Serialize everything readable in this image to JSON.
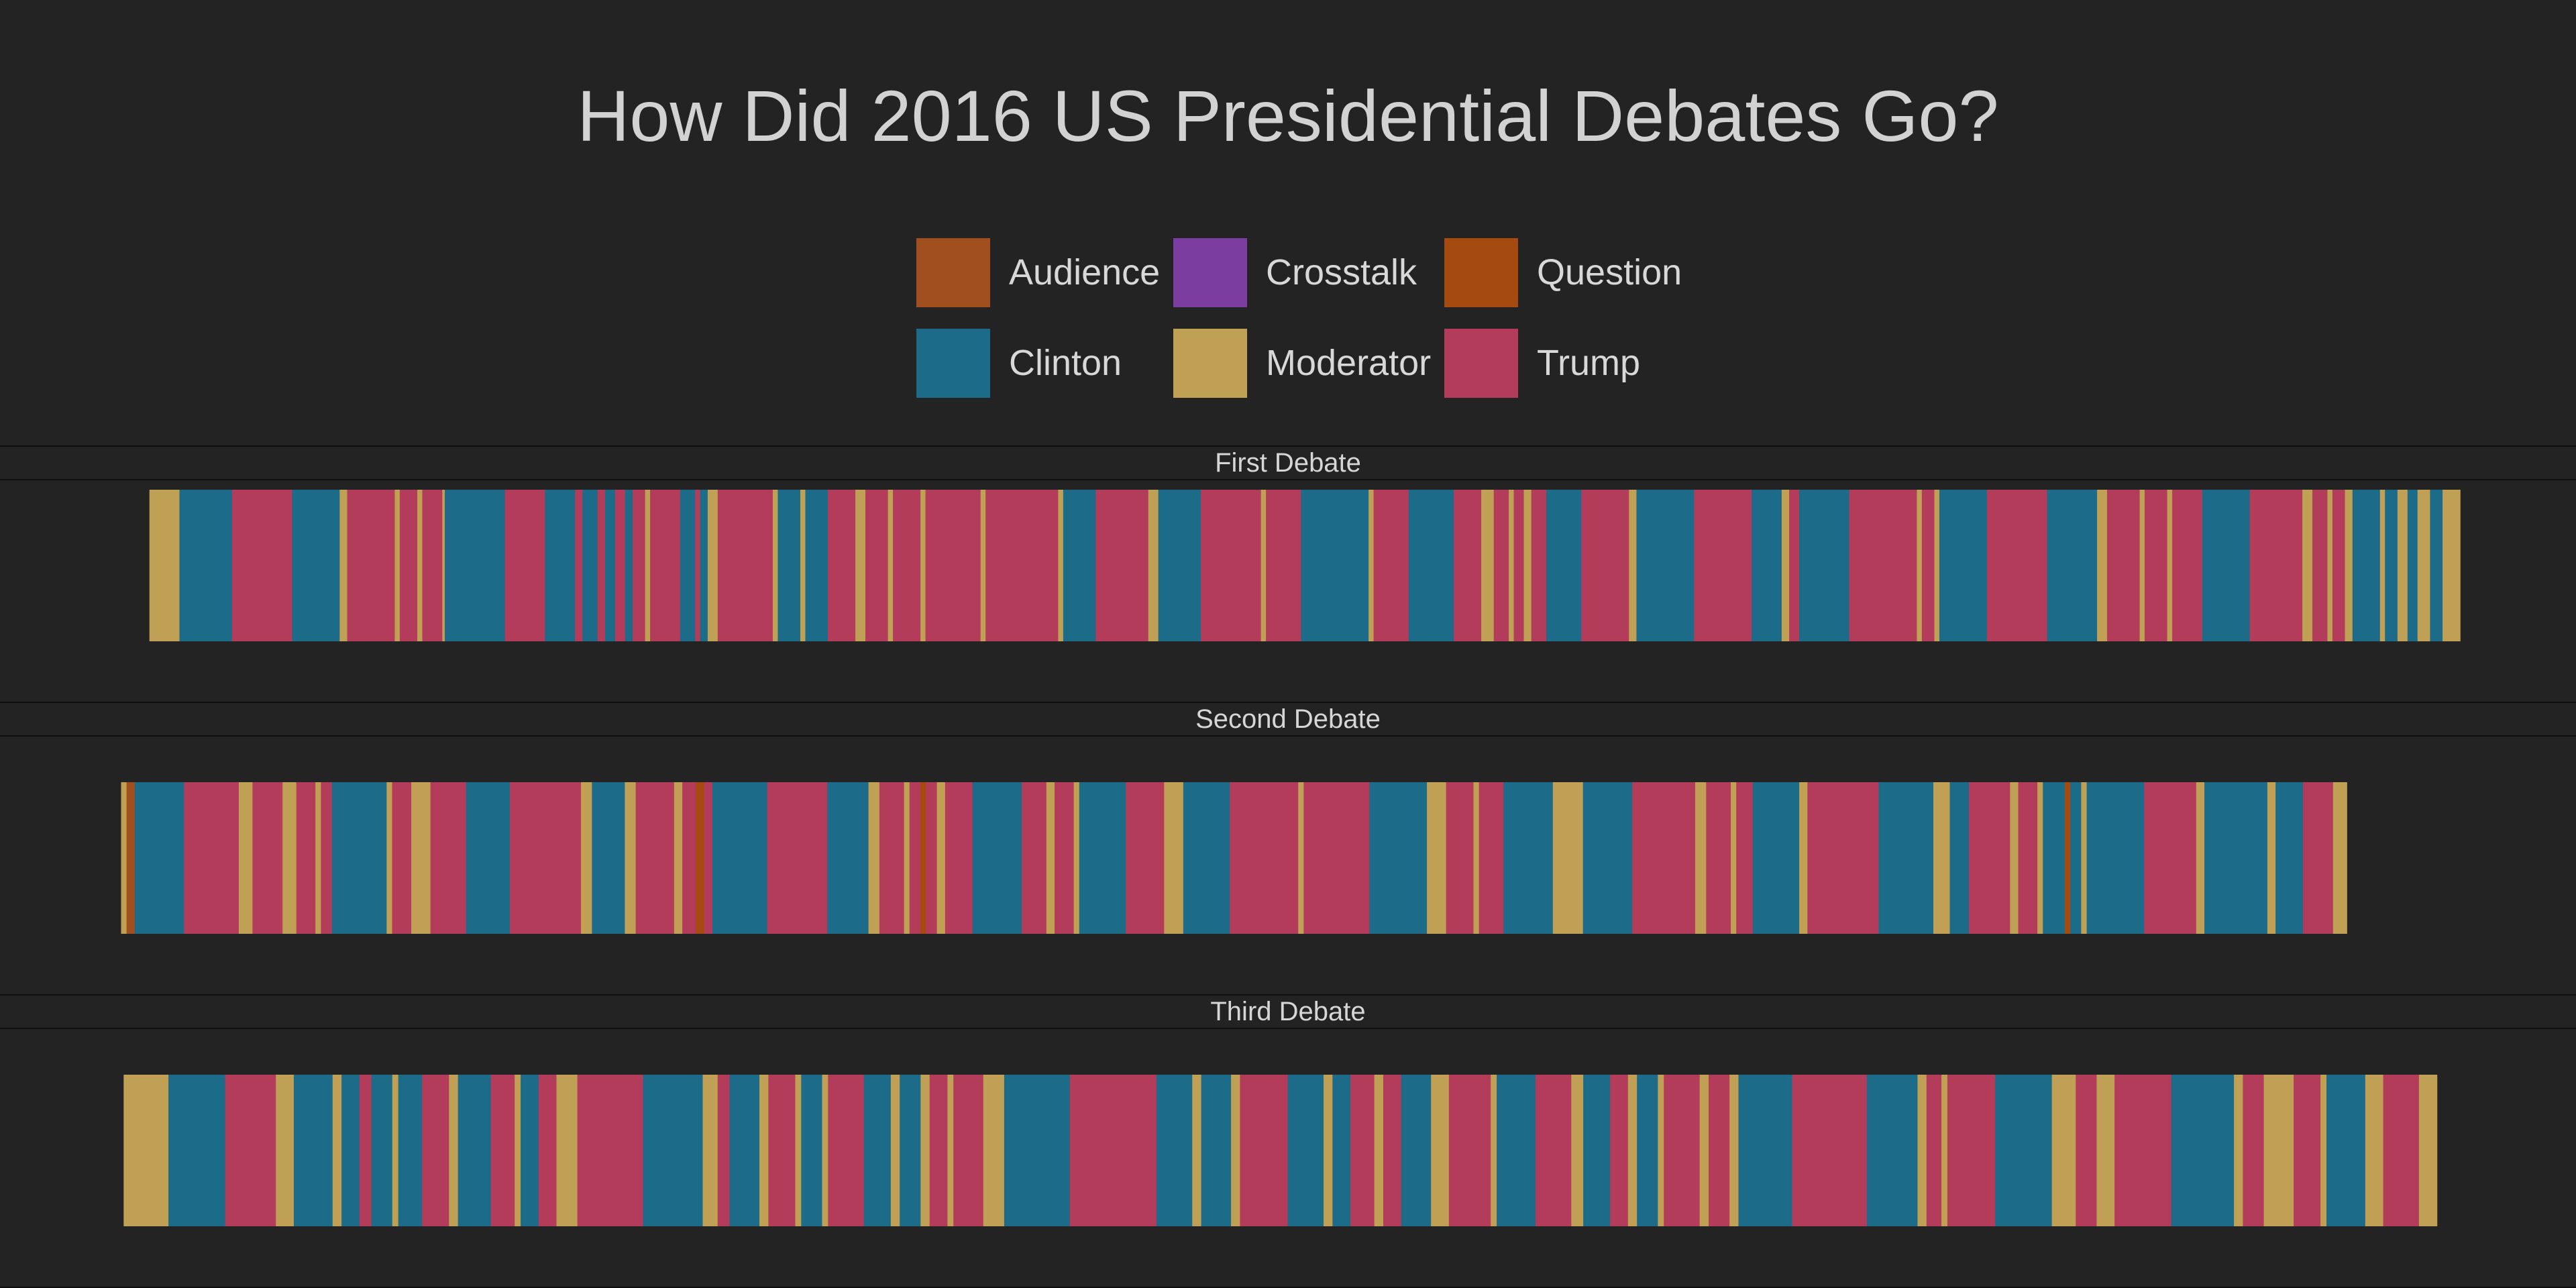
{
  "chart_data": {
    "type": "bar",
    "title": "How Did 2016 US Presidential Debates Go?",
    "legend": {
      "position": "top-center",
      "items": [
        {
          "label": "Audience",
          "color": "#a14f1f"
        },
        {
          "label": "Crosstalk",
          "color": "#7b3ea0"
        },
        {
          "label": "Question",
          "color": "#a54a10"
        },
        {
          "label": "Clinton",
          "color": "#1c6b89"
        },
        {
          "label": "Moderator",
          "color": "#c0a055"
        },
        {
          "label": "Trump",
          "color": "#b33c5a"
        }
      ]
    },
    "panels": [
      {
        "label": "First Debate",
        "extent": [
          0.058,
          0.955
        ],
        "segments": [
          [
            "Moderator",
            0.012
          ],
          [
            "Clinton",
            0.021
          ],
          [
            "Trump",
            0.024
          ],
          [
            "Clinton",
            0.019
          ],
          [
            "Moderator",
            0.003
          ],
          [
            "Trump",
            0.019
          ],
          [
            "Moderator",
            0.002
          ],
          [
            "Trump",
            0.007
          ],
          [
            "Moderator",
            0.002
          ],
          [
            "Trump",
            0.008
          ],
          [
            "Moderator",
            0.001
          ],
          [
            "Clinton",
            0.024
          ],
          [
            "Trump",
            0.016
          ],
          [
            "Clinton",
            0.012
          ],
          [
            "Trump",
            0.003
          ],
          [
            "Clinton",
            0.006
          ],
          [
            "Trump",
            0.003
          ],
          [
            "Clinton",
            0.004
          ],
          [
            "Trump",
            0.004
          ],
          [
            "Clinton",
            0.003
          ],
          [
            "Trump",
            0.005
          ],
          [
            "Moderator",
            0.002
          ],
          [
            "Trump",
            0.012
          ],
          [
            "Clinton",
            0.006
          ],
          [
            "Trump",
            0.002
          ],
          [
            "Clinton",
            0.003
          ],
          [
            "Moderator",
            0.004
          ],
          [
            "Trump",
            0.022
          ],
          [
            "Moderator",
            0.002
          ],
          [
            "Clinton",
            0.009
          ],
          [
            "Moderator",
            0.002
          ],
          [
            "Clinton",
            0.009
          ],
          [
            "Trump",
            0.011
          ],
          [
            "Moderator",
            0.004
          ],
          [
            "Trump",
            0.009
          ],
          [
            "Moderator",
            0.002
          ],
          [
            "Trump",
            0.011
          ],
          [
            "Moderator",
            0.002
          ],
          [
            "Trump",
            0.022
          ],
          [
            "Moderator",
            0.002
          ],
          [
            "Trump",
            0.029
          ],
          [
            "Moderator",
            0.002
          ],
          [
            "Clinton",
            0.013
          ],
          [
            "Trump",
            0.021
          ],
          [
            "Moderator",
            0.004
          ],
          [
            "Clinton",
            0.017
          ],
          [
            "Trump",
            0.024
          ],
          [
            "Moderator",
            0.002
          ],
          [
            "Trump",
            0.014
          ],
          [
            "Clinton",
            0.027
          ],
          [
            "Moderator",
            0.002
          ],
          [
            "Trump",
            0.014
          ],
          [
            "Clinton",
            0.018
          ],
          [
            "Trump",
            0.011
          ],
          [
            "Moderator",
            0.005
          ],
          [
            "Trump",
            0.006
          ],
          [
            "Moderator",
            0.002
          ],
          [
            "Trump",
            0.004
          ],
          [
            "Moderator",
            0.003
          ],
          [
            "Trump",
            0.006
          ],
          [
            "Clinton",
            0.014
          ],
          [
            "Trump",
            0.019
          ],
          [
            "Moderator",
            0.003
          ],
          [
            "Clinton",
            0.023
          ],
          [
            "Trump",
            0.023
          ],
          [
            "Clinton",
            0.012
          ],
          [
            "Moderator",
            0.003
          ],
          [
            "Trump",
            0.004
          ],
          [
            "Clinton",
            0.02
          ],
          [
            "Trump",
            0.027
          ],
          [
            "Moderator",
            0.002
          ],
          [
            "Trump",
            0.005
          ],
          [
            "Moderator",
            0.002
          ],
          [
            "Clinton",
            0.019
          ],
          [
            "Trump",
            0.024
          ],
          [
            "Clinton",
            0.02
          ],
          [
            "Moderator",
            0.004
          ],
          [
            "Trump",
            0.013
          ],
          [
            "Moderator",
            0.002
          ],
          [
            "Trump",
            0.009
          ],
          [
            "Moderator",
            0.002
          ],
          [
            "Trump",
            0.012
          ],
          [
            "Clinton",
            0.019
          ],
          [
            "Trump",
            0.021
          ],
          [
            "Moderator",
            0.004
          ],
          [
            "Trump",
            0.006
          ],
          [
            "Moderator",
            0.002
          ],
          [
            "Trump",
            0.005
          ],
          [
            "Moderator",
            0.003
          ],
          [
            "Clinton",
            0.011
          ],
          [
            "Moderator",
            0.002
          ],
          [
            "Clinton",
            0.005
          ],
          [
            "Moderator",
            0.004
          ],
          [
            "Clinton",
            0.004
          ],
          [
            "Moderator",
            0.005
          ],
          [
            "Clinton",
            0.005
          ],
          [
            "Moderator",
            0.007
          ]
        ]
      },
      {
        "label": "Second Debate",
        "extent": [
          0.047,
          0.911
        ],
        "segments": [
          [
            "Moderator",
            0.002
          ],
          [
            "Audience",
            0.003
          ],
          [
            "Clinton",
            0.018
          ],
          [
            "Trump",
            0.02
          ],
          [
            "Moderator",
            0.005
          ],
          [
            "Trump",
            0.011
          ],
          [
            "Moderator",
            0.005
          ],
          [
            "Trump",
            0.007
          ],
          [
            "Moderator",
            0.002
          ],
          [
            "Trump",
            0.004
          ],
          [
            "Clinton",
            0.02
          ],
          [
            "Moderator",
            0.002
          ],
          [
            "Trump",
            0.007
          ],
          [
            "Moderator",
            0.007
          ],
          [
            "Trump",
            0.013
          ],
          [
            "Clinton",
            0.016
          ],
          [
            "Trump",
            0.026
          ],
          [
            "Moderator",
            0.004
          ],
          [
            "Clinton",
            0.012
          ],
          [
            "Moderator",
            0.004
          ],
          [
            "Trump",
            0.014
          ],
          [
            "Moderator",
            0.003
          ],
          [
            "Trump",
            0.005
          ],
          [
            "Question",
            0.003
          ],
          [
            "Trump",
            0.003
          ],
          [
            "Clinton",
            0.02
          ],
          [
            "Trump",
            0.022
          ],
          [
            "Clinton",
            0.015
          ],
          [
            "Moderator",
            0.004
          ],
          [
            "Trump",
            0.009
          ],
          [
            "Moderator",
            0.002
          ],
          [
            "Trump",
            0.004
          ],
          [
            "Question",
            0.002
          ],
          [
            "Trump",
            0.004
          ],
          [
            "Moderator",
            0.003
          ],
          [
            "Trump",
            0.01
          ],
          [
            "Clinton",
            0.018
          ],
          [
            "Trump",
            0.009
          ],
          [
            "Moderator",
            0.003
          ],
          [
            "Trump",
            0.007
          ],
          [
            "Moderator",
            0.002
          ],
          [
            "Clinton",
            0.017
          ],
          [
            "Trump",
            0.014
          ],
          [
            "Moderator",
            0.007
          ],
          [
            "Clinton",
            0.017
          ],
          [
            "Trump",
            0.025
          ],
          [
            "Moderator",
            0.002
          ],
          [
            "Trump",
            0.024
          ],
          [
            "Clinton",
            0.021
          ],
          [
            "Moderator",
            0.007
          ],
          [
            "Trump",
            0.01
          ],
          [
            "Moderator",
            0.002
          ],
          [
            "Trump",
            0.009
          ],
          [
            "Clinton",
            0.018
          ],
          [
            "Moderator",
            0.011
          ],
          [
            "Clinton",
            0.018
          ],
          [
            "Trump",
            0.023
          ],
          [
            "Moderator",
            0.004
          ],
          [
            "Trump",
            0.009
          ],
          [
            "Moderator",
            0.002
          ],
          [
            "Trump",
            0.006
          ],
          [
            "Clinton",
            0.017
          ],
          [
            "Moderator",
            0.003
          ],
          [
            "Trump",
            0.026
          ],
          [
            "Clinton",
            0.02
          ],
          [
            "Moderator",
            0.006
          ],
          [
            "Clinton",
            0.007
          ],
          [
            "Trump",
            0.015
          ],
          [
            "Moderator",
            0.003
          ],
          [
            "Trump",
            0.007
          ],
          [
            "Moderator",
            0.002
          ],
          [
            "Clinton",
            0.008
          ],
          [
            "Question",
            0.002
          ],
          [
            "Clinton",
            0.004
          ],
          [
            "Moderator",
            0.002
          ],
          [
            "Clinton",
            0.021
          ],
          [
            "Trump",
            0.019
          ],
          [
            "Moderator",
            0.003
          ],
          [
            "Clinton",
            0.023
          ],
          [
            "Moderator",
            0.003
          ],
          [
            "Clinton",
            0.01
          ],
          [
            "Trump",
            0.011
          ],
          [
            "Moderator",
            0.005
          ]
        ]
      },
      {
        "label": "Third Debate",
        "extent": [
          0.048,
          0.946
        ],
        "segments": [
          [
            "Moderator",
            0.015
          ],
          [
            "Clinton",
            0.019
          ],
          [
            "Trump",
            0.017
          ],
          [
            "Moderator",
            0.006
          ],
          [
            "Clinton",
            0.013
          ],
          [
            "Moderator",
            0.003
          ],
          [
            "Clinton",
            0.006
          ],
          [
            "Trump",
            0.004
          ],
          [
            "Clinton",
            0.007
          ],
          [
            "Moderator",
            0.002
          ],
          [
            "Clinton",
            0.008
          ],
          [
            "Trump",
            0.009
          ],
          [
            "Moderator",
            0.003
          ],
          [
            "Clinton",
            0.011
          ],
          [
            "Trump",
            0.008
          ],
          [
            "Moderator",
            0.002
          ],
          [
            "Clinton",
            0.006
          ],
          [
            "Trump",
            0.006
          ],
          [
            "Moderator",
            0.007
          ],
          [
            "Trump",
            0.022
          ],
          [
            "Clinton",
            0.02
          ],
          [
            "Moderator",
            0.005
          ],
          [
            "Trump",
            0.004
          ],
          [
            "Clinton",
            0.01
          ],
          [
            "Moderator",
            0.003
          ],
          [
            "Trump",
            0.009
          ],
          [
            "Moderator",
            0.002
          ],
          [
            "Clinton",
            0.007
          ],
          [
            "Moderator",
            0.002
          ],
          [
            "Trump",
            0.012
          ],
          [
            "Clinton",
            0.009
          ],
          [
            "Moderator",
            0.003
          ],
          [
            "Clinton",
            0.007
          ],
          [
            "Moderator",
            0.003
          ],
          [
            "Trump",
            0.006
          ],
          [
            "Moderator",
            0.002
          ],
          [
            "Trump",
            0.01
          ],
          [
            "Moderator",
            0.007
          ],
          [
            "Clinton",
            0.022
          ],
          [
            "Trump",
            0.029
          ],
          [
            "Clinton",
            0.012
          ],
          [
            "Moderator",
            0.003
          ],
          [
            "Clinton",
            0.01
          ],
          [
            "Moderator",
            0.003
          ],
          [
            "Trump",
            0.016
          ],
          [
            "Clinton",
            0.012
          ],
          [
            "Moderator",
            0.003
          ],
          [
            "Clinton",
            0.006
          ],
          [
            "Trump",
            0.008
          ],
          [
            "Moderator",
            0.003
          ],
          [
            "Trump",
            0.006
          ],
          [
            "Clinton",
            0.01
          ],
          [
            "Moderator",
            0.006
          ],
          [
            "Trump",
            0.014
          ],
          [
            "Moderator",
            0.002
          ],
          [
            "Clinton",
            0.013
          ],
          [
            "Trump",
            0.012
          ],
          [
            "Moderator",
            0.004
          ],
          [
            "Clinton",
            0.009
          ],
          [
            "Trump",
            0.006
          ],
          [
            "Moderator",
            0.003
          ],
          [
            "Clinton",
            0.007
          ],
          [
            "Moderator",
            0.002
          ],
          [
            "Trump",
            0.012
          ],
          [
            "Moderator",
            0.003
          ],
          [
            "Trump",
            0.007
          ],
          [
            "Moderator",
            0.003
          ],
          [
            "Clinton",
            0.018
          ],
          [
            "Trump",
            0.025
          ],
          [
            "Clinton",
            0.017
          ],
          [
            "Moderator",
            0.003
          ],
          [
            "Trump",
            0.005
          ],
          [
            "Moderator",
            0.002
          ],
          [
            "Trump",
            0.016
          ],
          [
            "Clinton",
            0.019
          ],
          [
            "Moderator",
            0.008
          ],
          [
            "Trump",
            0.007
          ],
          [
            "Moderator",
            0.006
          ],
          [
            "Trump",
            0.019
          ],
          [
            "Clinton",
            0.021
          ],
          [
            "Moderator",
            0.003
          ],
          [
            "Trump",
            0.007
          ],
          [
            "Moderator",
            0.01
          ],
          [
            "Trump",
            0.009
          ],
          [
            "Moderator",
            0.002
          ],
          [
            "Clinton",
            0.013
          ],
          [
            "Moderator",
            0.006
          ],
          [
            "Trump",
            0.012
          ],
          [
            "Moderator",
            0.006
          ]
        ]
      }
    ]
  }
}
